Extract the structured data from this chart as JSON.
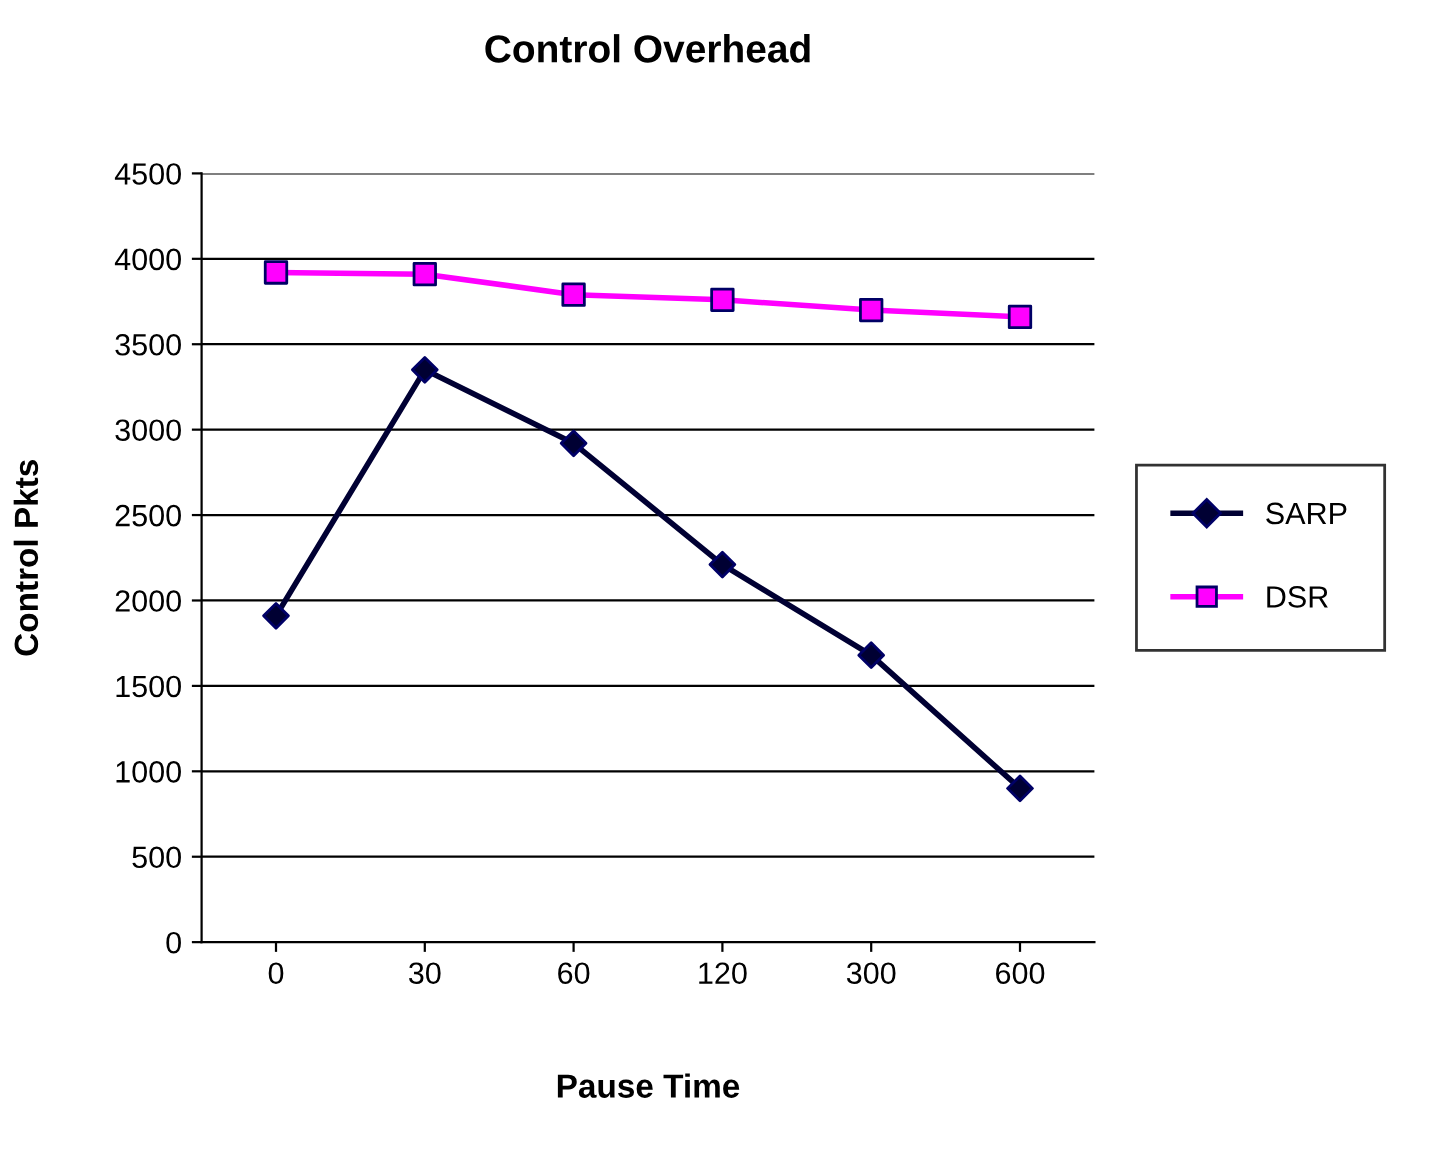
{
  "chart_data": {
    "type": "line",
    "title": "Control Overhead",
    "xlabel": "Pause Time",
    "ylabel": "Control Pkts",
    "categories": [
      "0",
      "30",
      "60",
      "120",
      "300",
      "600"
    ],
    "series": [
      {
        "name": "SARP",
        "color": "#000033",
        "marker": "diamond",
        "values": [
          1910,
          3350,
          2920,
          2210,
          1680,
          900
        ]
      },
      {
        "name": "DSR",
        "color": "#ff00ff",
        "marker": "square",
        "values": [
          3920,
          3910,
          3790,
          3760,
          3700,
          3660
        ]
      }
    ],
    "ylim": [
      0,
      4500
    ],
    "yticks": [
      0,
      500,
      1000,
      1500,
      2000,
      2500,
      3000,
      3500,
      4000,
      4500
    ],
    "grid": "y",
    "legend": "right"
  }
}
